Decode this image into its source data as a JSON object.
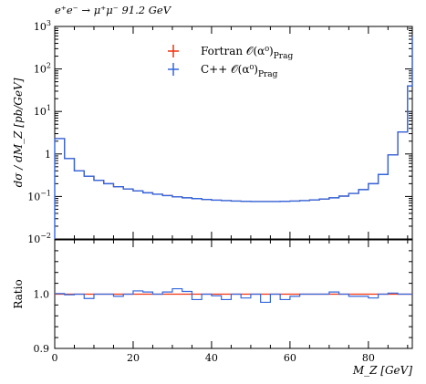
{
  "chart_data": [
    {
      "type": "line",
      "panel": "main",
      "title": "e⁺e⁻ → μ⁺μ⁻ 91.2 GeV",
      "xlabel": "M_Z [GeV]",
      "ylabel": "dσ / dM_Z [pb/GeV]",
      "yscale": "log",
      "xlim": [
        0,
        91.2
      ],
      "ylim": [
        0.01,
        1000
      ],
      "xticks": [
        0,
        20,
        40,
        60,
        80
      ],
      "yticks": [
        0.01,
        0.1,
        1,
        10,
        100,
        1000
      ],
      "ytick_labels": [
        {
          "base": "10",
          "exp": "−2"
        },
        {
          "base": "10",
          "exp": "−1"
        },
        {
          "base": "1",
          "exp": ""
        },
        {
          "base": "10",
          "exp": "1"
        },
        {
          "base": "10",
          "exp": "2"
        },
        {
          "base": "10",
          "exp": "3"
        }
      ],
      "legend_position": "top-center",
      "x_edges": [
        0,
        2.5,
        5,
        7.5,
        10,
        12.5,
        15,
        17.5,
        20,
        22.5,
        25,
        27.5,
        30,
        32.5,
        35,
        37.5,
        40,
        42.5,
        45,
        47.5,
        50,
        52.5,
        55,
        57.5,
        60,
        62.5,
        65,
        67.5,
        70,
        72.5,
        75,
        77.5,
        80,
        82.5,
        85,
        87.5,
        90,
        91.2
      ],
      "series": [
        {
          "name": "Fortran 𝒪(α⁰)",
          "name_sub": "Prag",
          "color": "#ee3311",
          "values": [
            2.3,
            0.78,
            0.4,
            0.3,
            0.24,
            0.2,
            0.17,
            0.15,
            0.135,
            0.122,
            0.113,
            0.105,
            0.098,
            0.093,
            0.089,
            0.085,
            0.082,
            0.08,
            0.078,
            0.077,
            0.076,
            0.076,
            0.076,
            0.077,
            0.078,
            0.08,
            0.083,
            0.087,
            0.093,
            0.102,
            0.118,
            0.145,
            0.2,
            0.33,
            0.95,
            3.3,
            40,
            600
          ]
        },
        {
          "name": "C++ 𝒪(α⁰)",
          "name_sub": "Prag",
          "color": "#3366dd",
          "values": [
            2.3,
            0.78,
            0.4,
            0.3,
            0.24,
            0.2,
            0.17,
            0.15,
            0.135,
            0.122,
            0.113,
            0.105,
            0.098,
            0.093,
            0.089,
            0.085,
            0.082,
            0.08,
            0.078,
            0.077,
            0.076,
            0.076,
            0.076,
            0.077,
            0.078,
            0.08,
            0.083,
            0.087,
            0.093,
            0.102,
            0.118,
            0.145,
            0.2,
            0.33,
            0.95,
            3.3,
            40,
            600
          ]
        }
      ]
    },
    {
      "type": "line",
      "panel": "ratio",
      "xlabel": "M_Z [GeV]",
      "ylabel": "Ratio",
      "xlim": [
        0,
        91.2
      ],
      "ylim": [
        0.9,
        1.1
      ],
      "yticks": [
        0.9,
        1.0
      ],
      "ytick_labels": [
        "0.9",
        "1.0"
      ],
      "xticks": [
        0,
        20,
        40,
        60,
        80
      ],
      "x_edges": [
        0,
        2.5,
        5,
        7.5,
        10,
        12.5,
        15,
        17.5,
        20,
        22.5,
        25,
        27.5,
        30,
        32.5,
        35,
        37.5,
        40,
        42.5,
        45,
        47.5,
        50,
        52.5,
        55,
        57.5,
        60,
        62.5,
        65,
        67.5,
        70,
        72.5,
        75,
        77.5,
        80,
        82.5,
        85,
        87.5,
        90,
        91.2
      ],
      "series": [
        {
          "name": "Fortran",
          "color": "#ee3311",
          "values": [
            1.0,
            1.0,
            1.0,
            1.0,
            1.0,
            1.0,
            1.0,
            1.0,
            1.0,
            1.0,
            1.0,
            1.0,
            1.0,
            1.0,
            1.0,
            1.0,
            1.0,
            1.0,
            1.0,
            1.0,
            1.0,
            1.0,
            1.0,
            1.0,
            1.0,
            1.0,
            1.0,
            1.0,
            1.0,
            1.0,
            1.0,
            1.0,
            1.0,
            1.0,
            1.0,
            1.0,
            1.0,
            1.0
          ]
        },
        {
          "name": "C++",
          "color": "#3366dd",
          "values": [
            1.001,
            0.999,
            1.0,
            0.992,
            1.0,
            1.0,
            0.996,
            1.0,
            1.006,
            1.004,
            1.0,
            1.004,
            1.01,
            1.005,
            0.99,
            1.0,
            0.997,
            0.99,
            1.0,
            0.993,
            1.0,
            0.985,
            1.0,
            0.99,
            0.996,
            1.0,
            1.0,
            1.0,
            1.004,
            1.0,
            0.996,
            0.996,
            0.993,
            1.0,
            1.002,
            1.0,
            1.0,
            1.0
          ]
        }
      ]
    }
  ]
}
